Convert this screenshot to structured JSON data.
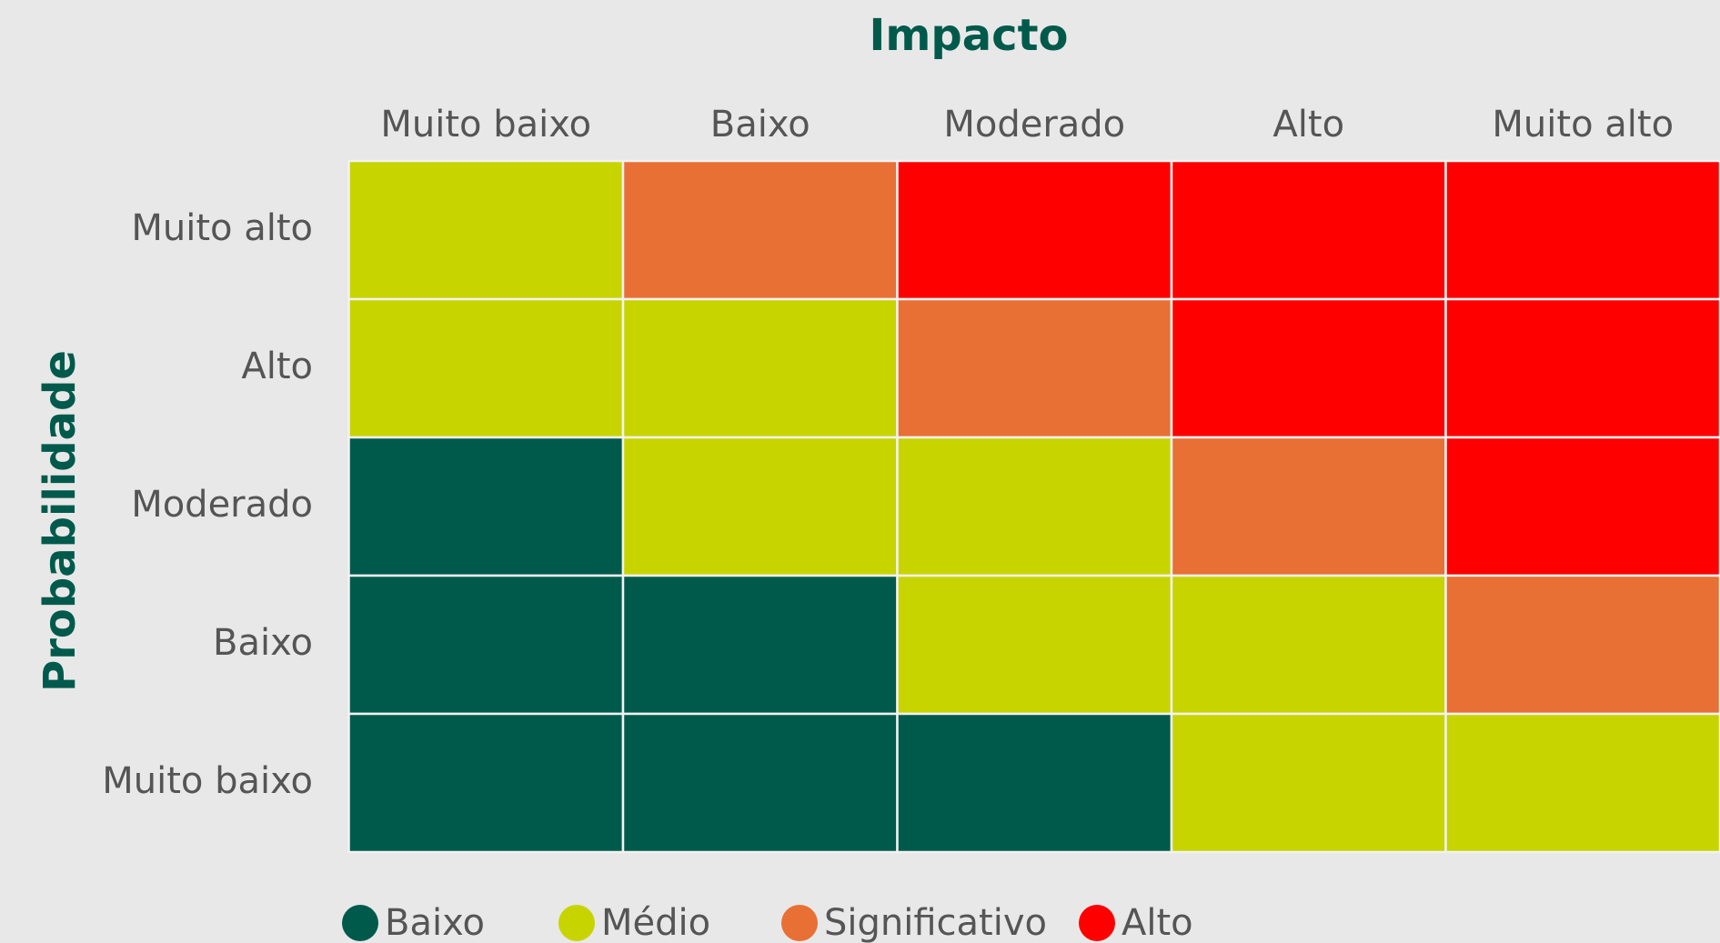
{
  "title": "Impacto",
  "y_label": "Probabilidade",
  "columns": [
    "Muito baixo",
    "Baixo",
    "Moderado",
    "Alto",
    "Muito alto"
  ],
  "rows": [
    "Muito alto",
    "Alto",
    "Moderado",
    "Baixo",
    "Muito baixo"
  ],
  "legend": [
    {
      "name": "Baixo",
      "color": "#005a4b"
    },
    {
      "name": "Médio",
      "color": "#c8d400"
    },
    {
      "name": "Significativo",
      "color": "#e87034"
    },
    {
      "name": "Alto",
      "color": "#ff0000"
    }
  ],
  "cells": [
    [
      "Médio",
      "Significativo",
      "Alto",
      "Alto",
      "Alto"
    ],
    [
      "Médio",
      "Médio",
      "Significativo",
      "Alto",
      "Alto"
    ],
    [
      "Baixo",
      "Médio",
      "Médio",
      "Significativo",
      "Alto"
    ],
    [
      "Baixo",
      "Baixo",
      "Médio",
      "Médio",
      "Significativo"
    ],
    [
      "Baixo",
      "Baixo",
      "Baixo",
      "Médio",
      "Médio"
    ]
  ]
}
